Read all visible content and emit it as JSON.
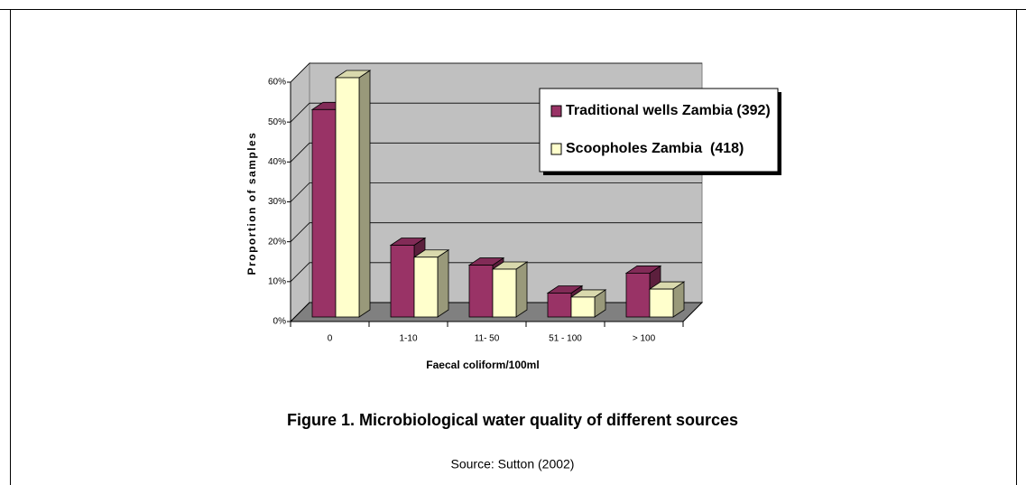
{
  "chart_data": {
    "type": "bar3d",
    "xlabel": "Faecal coliform/100ml",
    "ylabel": "Proportion of samples",
    "categories": [
      "0",
      "1-10",
      "11- 50",
      "51 - 100",
      "> 100"
    ],
    "series": [
      {
        "name": "Traditional wells Zambia (392)",
        "color": "#993366",
        "values": [
          52,
          18,
          13,
          6,
          11
        ]
      },
      {
        "name": "Scoopholes Zambia  (418)",
        "color": "#ffffcc",
        "values": [
          60,
          15,
          12,
          5,
          7
        ]
      }
    ],
    "ylim": [
      0,
      60
    ],
    "yticks": [
      {
        "value": 0,
        "label": "0%"
      },
      {
        "value": 10,
        "label": "10%"
      },
      {
        "value": 20,
        "label": "20%"
      },
      {
        "value": 30,
        "label": "30%"
      },
      {
        "value": 40,
        "label": "40%"
      },
      {
        "value": 50,
        "label": "50%"
      },
      {
        "value": 60,
        "label": "60%"
      }
    ],
    "grid": true,
    "legend": "upper right"
  },
  "caption": "Figure 1. Microbiological water quality of different sources",
  "source": "Source: Sutton (2002)"
}
